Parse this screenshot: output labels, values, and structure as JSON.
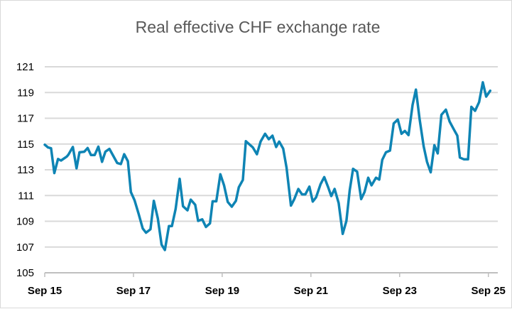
{
  "chart_data": {
    "type": "line",
    "title": "Real effective CHF exchange rate",
    "xlabel": "",
    "ylabel": "",
    "x_unit": "months since Sep 2015",
    "ylim": [
      105,
      121
    ],
    "yticks": [
      105,
      107,
      109,
      111,
      113,
      115,
      117,
      119,
      121
    ],
    "xticks": [
      {
        "month": 0,
        "label": "Sep 15"
      },
      {
        "month": 24,
        "label": "Sep 17"
      },
      {
        "month": 48,
        "label": "Sep 19"
      },
      {
        "month": 72,
        "label": "Sep 21"
      },
      {
        "month": 96,
        "label": "Sep 23"
      },
      {
        "month": 120,
        "label": "Sep 25"
      }
    ],
    "grid": true,
    "color": "#0E84B4",
    "series": [
      {
        "name": "Real effective CHF exchange rate",
        "points": [
          [
            0,
            114.95
          ],
          [
            0.9,
            114.73
          ],
          [
            1.7,
            114.67
          ],
          [
            2.6,
            112.74
          ],
          [
            3.6,
            113.84
          ],
          [
            4.4,
            113.72
          ],
          [
            6,
            114.03
          ],
          [
            6.4,
            114.17
          ],
          [
            7.6,
            114.77
          ],
          [
            8.6,
            113.11
          ],
          [
            9.4,
            114.36
          ],
          [
            10.7,
            114.4
          ],
          [
            11.6,
            114.69
          ],
          [
            12.5,
            114.14
          ],
          [
            13.5,
            114.14
          ],
          [
            14.5,
            114.8
          ],
          [
            15.5,
            113.62
          ],
          [
            16.4,
            114.4
          ],
          [
            17.5,
            114.62
          ],
          [
            19.6,
            113.53
          ],
          [
            20.6,
            113.44
          ],
          [
            21.5,
            114.21
          ],
          [
            22.5,
            113.66
          ],
          [
            23.3,
            111.27
          ],
          [
            24.3,
            110.63
          ],
          [
            25.4,
            109.58
          ],
          [
            26.5,
            108.44
          ],
          [
            27.4,
            108.11
          ],
          [
            28.6,
            108.38
          ],
          [
            29.5,
            110.59
          ],
          [
            30.6,
            109.21
          ],
          [
            31.6,
            107.19
          ],
          [
            32.5,
            106.77
          ],
          [
            33.6,
            108.63
          ],
          [
            34.4,
            108.63
          ],
          [
            35.4,
            109.95
          ],
          [
            36.5,
            112.3
          ],
          [
            37.4,
            110.17
          ],
          [
            38.6,
            109.85
          ],
          [
            39.5,
            110.68
          ],
          [
            40.7,
            110.28
          ],
          [
            41.5,
            109.03
          ],
          [
            42.6,
            109.15
          ],
          [
            43.6,
            108.56
          ],
          [
            44.7,
            108.84
          ],
          [
            45.4,
            110.55
          ],
          [
            46.4,
            110.55
          ],
          [
            47.5,
            112.65
          ],
          [
            48.5,
            111.79
          ],
          [
            49.5,
            110.5
          ],
          [
            50.6,
            110.13
          ],
          [
            51.7,
            110.59
          ],
          [
            52.5,
            111.64
          ],
          [
            53.6,
            112.21
          ],
          [
            54.4,
            115.22
          ],
          [
            56.3,
            114.73
          ],
          [
            57.4,
            114.21
          ],
          [
            58.4,
            115.19
          ],
          [
            59.6,
            115.8
          ],
          [
            60.6,
            115.37
          ],
          [
            61.6,
            115.65
          ],
          [
            62.6,
            114.77
          ],
          [
            63.4,
            115.19
          ],
          [
            64.5,
            114.64
          ],
          [
            65.4,
            113.17
          ],
          [
            66.6,
            110.22
          ],
          [
            67.5,
            110.72
          ],
          [
            68.6,
            111.51
          ],
          [
            69.6,
            111.09
          ],
          [
            70.5,
            111.09
          ],
          [
            71.6,
            111.69
          ],
          [
            72.5,
            110.53
          ],
          [
            73.4,
            110.86
          ],
          [
            74.6,
            111.88
          ],
          [
            75.6,
            112.43
          ],
          [
            76.6,
            111.69
          ],
          [
            77.5,
            110.96
          ],
          [
            78.4,
            111.51
          ],
          [
            79.5,
            110.41
          ],
          [
            80.6,
            108.02
          ],
          [
            81.6,
            109.03
          ],
          [
            82.5,
            111.42
          ],
          [
            83.4,
            113.07
          ],
          [
            84.5,
            112.85
          ],
          [
            85.6,
            110.72
          ],
          [
            86.5,
            111.27
          ],
          [
            87.5,
            112.38
          ],
          [
            88.4,
            111.79
          ],
          [
            89.6,
            112.38
          ],
          [
            90.5,
            112.24
          ],
          [
            91.3,
            113.77
          ],
          [
            92.3,
            114.36
          ],
          [
            93.4,
            114.49
          ],
          [
            94.4,
            116.6
          ],
          [
            95.5,
            116.9
          ],
          [
            96.5,
            115.8
          ],
          [
            97.4,
            116.02
          ],
          [
            98.4,
            115.69
          ],
          [
            99.5,
            118.04
          ],
          [
            100.4,
            119.23
          ],
          [
            101.4,
            116.93
          ],
          [
            102.5,
            114.82
          ],
          [
            103.4,
            113.62
          ],
          [
            104.4,
            112.8
          ],
          [
            105.4,
            114.91
          ],
          [
            106.3,
            114.27
          ],
          [
            107.3,
            117.27
          ],
          [
            108.5,
            117.67
          ],
          [
            109.5,
            116.75
          ],
          [
            110.7,
            116.11
          ],
          [
            111.6,
            115.65
          ],
          [
            112.3,
            113.95
          ],
          [
            113.4,
            113.81
          ],
          [
            114.5,
            113.81
          ],
          [
            115.4,
            117.89
          ],
          [
            116.4,
            117.58
          ],
          [
            117.5,
            118.26
          ],
          [
            118.5,
            119.79
          ],
          [
            119.4,
            118.68
          ],
          [
            120.5,
            119.14
          ]
        ]
      }
    ]
  }
}
